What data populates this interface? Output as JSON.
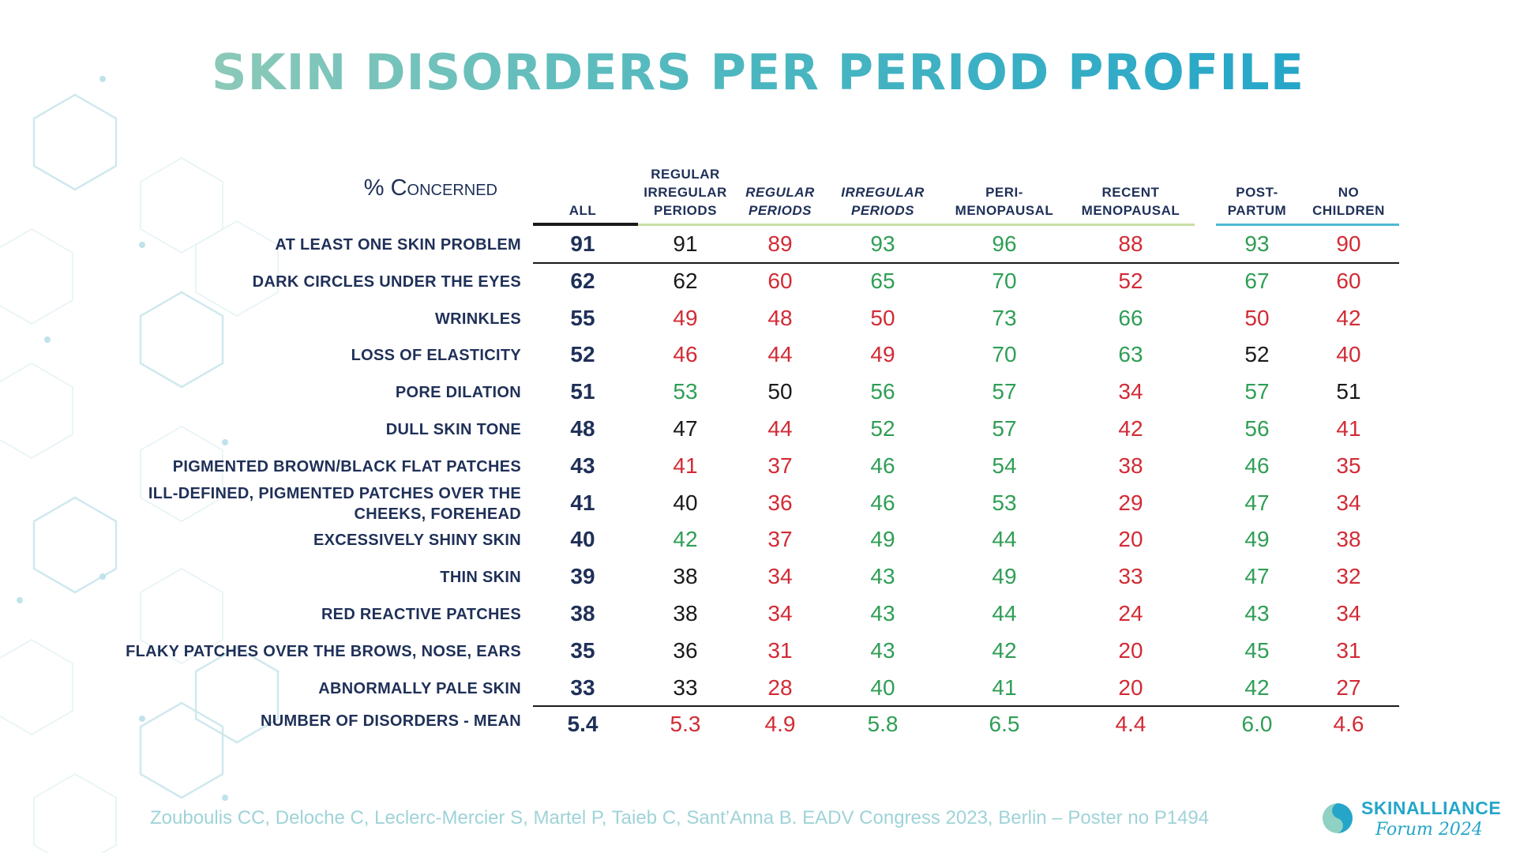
{
  "title": "SKIN DISORDERS PER PERIOD PROFILE",
  "row_header": "% Concerned",
  "chart_data": {
    "type": "table",
    "columns": [
      {
        "lines": [
          "ALL"
        ],
        "italic": false
      },
      {
        "lines": [
          "REGULAR",
          "IRREGULAR",
          "PERIODS"
        ],
        "italic": false
      },
      {
        "lines": [
          "REGULAR",
          "PERIODS"
        ],
        "italic": true
      },
      {
        "lines": [
          "IRREGULAR",
          "PERIODS"
        ],
        "italic": true
      },
      {
        "lines": [
          "PERI-",
          "MENOPAUSAL"
        ],
        "italic": false
      },
      {
        "lines": [
          "RECENT",
          "MENOPAUSAL"
        ],
        "italic": false
      },
      {
        "lines": [
          "POST-",
          "PARTUM"
        ],
        "italic": false
      },
      {
        "lines": [
          "NO",
          "CHILDREN"
        ],
        "italic": false
      }
    ],
    "rows": [
      {
        "label": [
          "AT LEAST ONE SKIN PROBLEM"
        ],
        "values": [
          "91",
          "91",
          "89",
          "93",
          "96",
          "88",
          "93",
          "90"
        ],
        "colors": [
          "navy",
          "black",
          "red",
          "green",
          "green",
          "red",
          "green",
          "red"
        ]
      },
      {
        "label": [
          "DARK CIRCLES UNDER THE EYES"
        ],
        "values": [
          "62",
          "62",
          "60",
          "65",
          "70",
          "52",
          "67",
          "60"
        ],
        "colors": [
          "navy",
          "black",
          "red",
          "green",
          "green",
          "red",
          "green",
          "red"
        ]
      },
      {
        "label": [
          "WRINKLES"
        ],
        "values": [
          "55",
          "49",
          "48",
          "50",
          "73",
          "66",
          "50",
          "42"
        ],
        "colors": [
          "navy",
          "red",
          "red",
          "red",
          "green",
          "green",
          "red",
          "red"
        ]
      },
      {
        "label": [
          "LOSS OF ELASTICITY"
        ],
        "values": [
          "52",
          "46",
          "44",
          "49",
          "70",
          "63",
          "52",
          "40"
        ],
        "colors": [
          "navy",
          "red",
          "red",
          "red",
          "green",
          "green",
          "black",
          "red"
        ]
      },
      {
        "label": [
          "PORE DILATION"
        ],
        "values": [
          "51",
          "53",
          "50",
          "56",
          "57",
          "34",
          "57",
          "51"
        ],
        "colors": [
          "navy",
          "green",
          "black",
          "green",
          "green",
          "red",
          "green",
          "black"
        ]
      },
      {
        "label": [
          "DULL SKIN TONE"
        ],
        "values": [
          "48",
          "47",
          "44",
          "52",
          "57",
          "42",
          "56",
          "41"
        ],
        "colors": [
          "navy",
          "black",
          "red",
          "green",
          "green",
          "red",
          "green",
          "red"
        ]
      },
      {
        "label": [
          "PIGMENTED BROWN/BLACK FLAT PATCHES"
        ],
        "values": [
          "43",
          "41",
          "37",
          "46",
          "54",
          "38",
          "46",
          "35"
        ],
        "colors": [
          "navy",
          "red",
          "red",
          "green",
          "green",
          "red",
          "green",
          "red"
        ]
      },
      {
        "label": [
          "ILL-DEFINED, PIGMENTED PATCHES OVER THE",
          "CHEEKS, FOREHEAD"
        ],
        "values": [
          "41",
          "40",
          "36",
          "46",
          "53",
          "29",
          "47",
          "34"
        ],
        "colors": [
          "navy",
          "black",
          "red",
          "green",
          "green",
          "red",
          "green",
          "red"
        ]
      },
      {
        "label": [
          "EXCESSIVELY SHINY SKIN"
        ],
        "values": [
          "40",
          "42",
          "37",
          "49",
          "44",
          "20",
          "49",
          "38"
        ],
        "colors": [
          "navy",
          "green",
          "red",
          "green",
          "green",
          "red",
          "green",
          "red"
        ]
      },
      {
        "label": [
          "THIN SKIN"
        ],
        "values": [
          "39",
          "38",
          "34",
          "43",
          "49",
          "33",
          "47",
          "32"
        ],
        "colors": [
          "navy",
          "black",
          "red",
          "green",
          "green",
          "red",
          "green",
          "red"
        ]
      },
      {
        "label": [
          "RED REACTIVE PATCHES"
        ],
        "values": [
          "38",
          "38",
          "34",
          "43",
          "44",
          "24",
          "43",
          "34"
        ],
        "colors": [
          "navy",
          "black",
          "red",
          "green",
          "green",
          "red",
          "green",
          "red"
        ]
      },
      {
        "label": [
          "FLAKY PATCHES OVER THE BROWS, NOSE, EARS"
        ],
        "values": [
          "35",
          "36",
          "31",
          "43",
          "42",
          "20",
          "45",
          "31"
        ],
        "colors": [
          "navy",
          "black",
          "red",
          "green",
          "green",
          "red",
          "green",
          "red"
        ]
      },
      {
        "label": [
          "ABNORMALLY PALE SKIN"
        ],
        "values": [
          "33",
          "33",
          "28",
          "40",
          "41",
          "20",
          "42",
          "27"
        ],
        "colors": [
          "navy",
          "black",
          "red",
          "green",
          "green",
          "red",
          "green",
          "red"
        ]
      },
      {
        "label": [
          "NUMBER OF DISORDERS - MEAN"
        ],
        "values": [
          "5.4",
          "5.3",
          "4.9",
          "5.8",
          "6.5",
          "4.4",
          "6.0",
          "4.6"
        ],
        "colors": [
          "navy",
          "red",
          "red",
          "green",
          "green",
          "red",
          "green",
          "red"
        ]
      }
    ]
  },
  "palette": {
    "navy": "#1f3058",
    "black": "#1a1a1a",
    "red": "#d22b35",
    "green": "#2f9e55"
  },
  "citation": "Zouboulis CC, Deloche C, Leclerc-Mercier S, Martel P, Taieb C, Sant’Anna B. EADV Congress 2023, Berlin – Poster no P1494",
  "logo": {
    "name": "SKINALLIANCE",
    "sub": "Forum 2024"
  }
}
